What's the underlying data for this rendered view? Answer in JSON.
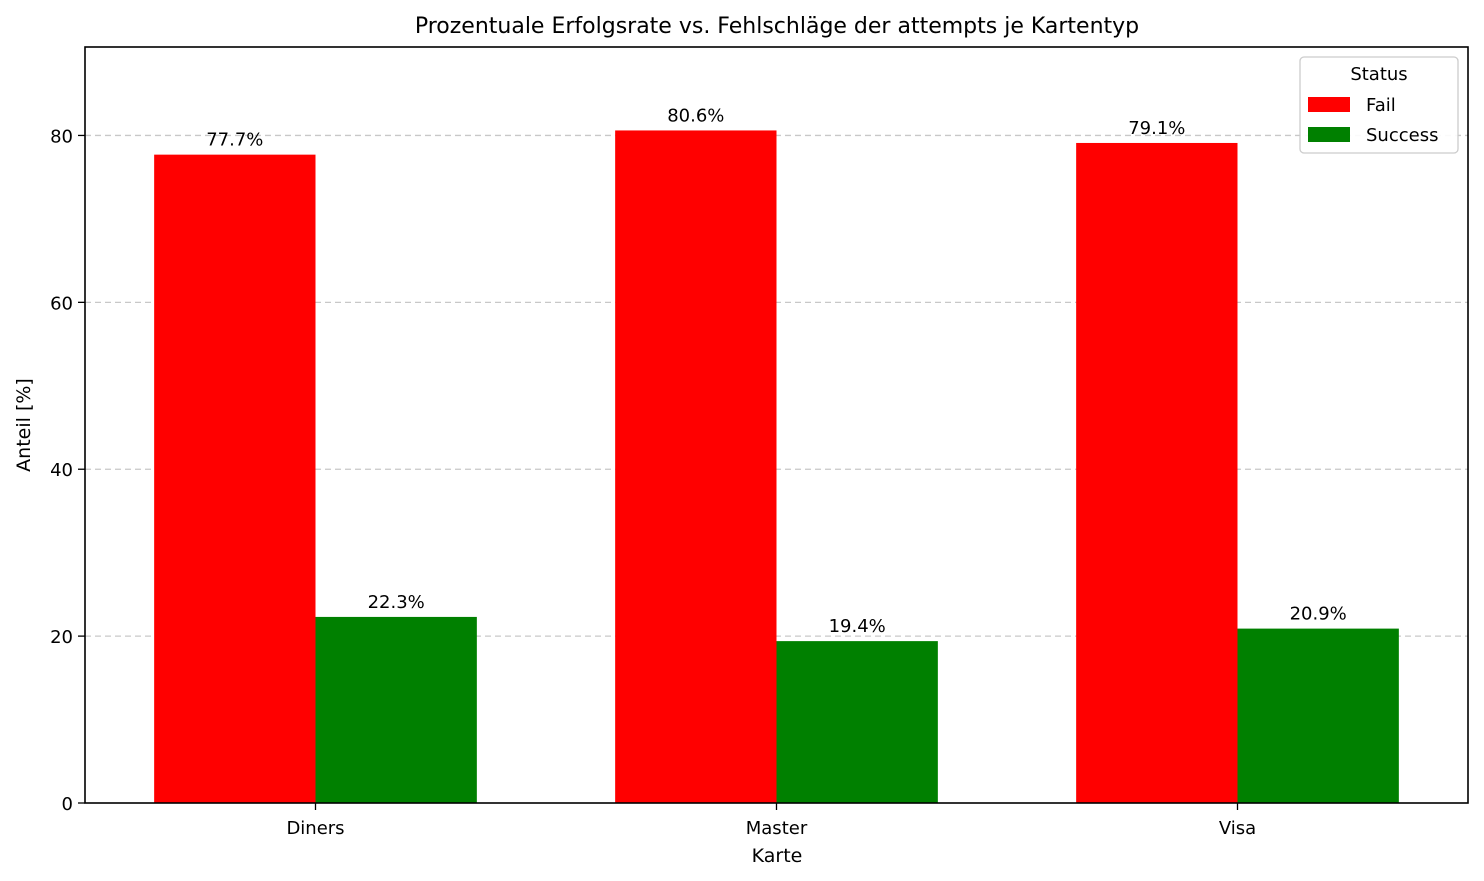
{
  "chart_data": {
    "type": "bar",
    "title": "Prozentuale Erfolgsrate vs. Fehlschläge der attempts je Kartentyp",
    "xlabel": "Karte",
    "ylabel": "Anteil [%]",
    "categories": [
      "Diners",
      "Master",
      "Visa"
    ],
    "series": [
      {
        "name": "Fail",
        "color": "#ff0000",
        "values": [
          77.7,
          80.6,
          79.1
        ],
        "labels": [
          "77.7%",
          "80.6%",
          "79.1%"
        ]
      },
      {
        "name": "Success",
        "color": "#008000",
        "values": [
          22.3,
          19.4,
          20.9
        ],
        "labels": [
          "22.3%",
          "19.4%",
          "20.9%"
        ]
      }
    ],
    "ylim": [
      0,
      90.6
    ],
    "yticks": [
      0,
      20,
      40,
      60,
      80
    ],
    "grid": "y-dashed",
    "legend": {
      "title": "Status",
      "placement": "top-right"
    }
  }
}
